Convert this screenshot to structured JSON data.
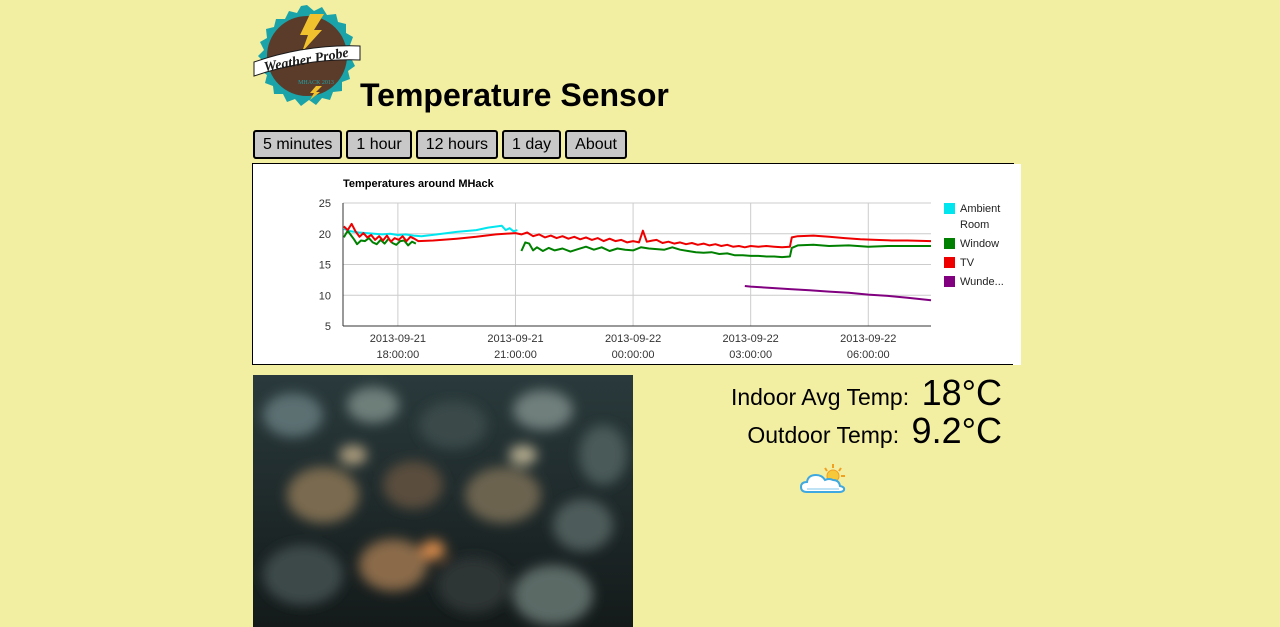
{
  "logo": {
    "line1": "Weather Probe",
    "line2": "MHACK 2013"
  },
  "page": {
    "title": "Temperature Sensor"
  },
  "nav": {
    "items": [
      {
        "label": "5 minutes"
      },
      {
        "label": "1 hour"
      },
      {
        "label": "12 hours"
      },
      {
        "label": "1 day"
      },
      {
        "label": "About"
      }
    ]
  },
  "chart_data": {
    "type": "line",
    "title": "Temperatures around MHack",
    "xlabel": "",
    "ylabel": "",
    "ylim": [
      5,
      25
    ],
    "yticks": [
      5,
      10,
      15,
      20,
      25
    ],
    "xlim": [
      16.6,
      31.6
    ],
    "x_unit": "hours",
    "xticks": [
      {
        "x": 18,
        "date": "2013-09-21",
        "time": "18:00:00"
      },
      {
        "x": 21,
        "date": "2013-09-21",
        "time": "21:00:00"
      },
      {
        "x": 24,
        "date": "2013-09-22",
        "time": "00:00:00"
      },
      {
        "x": 27,
        "date": "2013-09-22",
        "time": "03:00:00"
      },
      {
        "x": 30,
        "date": "2013-09-22",
        "time": "06:00:00"
      }
    ],
    "grid": true,
    "legend": "right",
    "series": [
      {
        "name": "Ambient Room",
        "color": "#00e5ee",
        "segments": [
          [
            [
              16.62,
              20.8
            ],
            [
              16.8,
              20.4
            ],
            [
              17.0,
              20.2
            ],
            [
              17.2,
              20.1
            ],
            [
              17.4,
              20.0
            ],
            [
              17.6,
              19.9
            ],
            [
              17.8,
              20.0
            ],
            [
              18.0,
              19.8
            ],
            [
              18.2,
              19.9
            ],
            [
              18.4,
              19.7
            ],
            [
              18.6,
              19.6
            ],
            [
              19.0,
              19.9
            ],
            [
              19.5,
              20.3
            ],
            [
              20.0,
              20.6
            ],
            [
              20.3,
              21.0
            ],
            [
              20.65,
              21.3
            ],
            [
              20.75,
              20.6
            ],
            [
              20.85,
              20.9
            ],
            [
              20.95,
              20.4
            ],
            [
              21.05,
              20.6
            ]
          ]
        ]
      },
      {
        "name": "Window",
        "color": "#008000",
        "segments": [
          [
            [
              16.62,
              19.4
            ],
            [
              16.72,
              20.5
            ],
            [
              16.8,
              19.8
            ],
            [
              16.88,
              19.1
            ],
            [
              16.96,
              18.3
            ],
            [
              17.06,
              18.9
            ],
            [
              17.16,
              18.8
            ],
            [
              17.26,
              19.3
            ],
            [
              17.36,
              18.6
            ],
            [
              17.46,
              18.3
            ],
            [
              17.56,
              19.0
            ],
            [
              17.66,
              18.4
            ],
            [
              17.76,
              19.2
            ],
            [
              17.86,
              18.5
            ],
            [
              17.96,
              18.2
            ],
            [
              18.06,
              18.8
            ],
            [
              18.16,
              18.9
            ],
            [
              18.26,
              18.1
            ],
            [
              18.36,
              18.7
            ],
            [
              18.46,
              18.4
            ]
          ],
          [
            [
              21.15,
              17.2
            ],
            [
              21.25,
              18.6
            ],
            [
              21.35,
              18.4
            ],
            [
              21.45,
              17.3
            ],
            [
              21.55,
              17.8
            ],
            [
              21.7,
              17.2
            ],
            [
              21.85,
              17.7
            ],
            [
              22.0,
              17.3
            ],
            [
              22.2,
              17.6
            ],
            [
              22.4,
              17.1
            ],
            [
              22.6,
              17.5
            ],
            [
              22.8,
              17.9
            ],
            [
              23.0,
              17.4
            ],
            [
              23.2,
              17.8
            ],
            [
              23.4,
              17.2
            ],
            [
              23.6,
              17.6
            ],
            [
              23.8,
              17.4
            ],
            [
              24.0,
              17.3
            ],
            [
              24.2,
              17.8
            ],
            [
              24.4,
              17.6
            ],
            [
              24.6,
              17.5
            ],
            [
              24.8,
              17.4
            ],
            [
              25.0,
              17.8
            ],
            [
              25.2,
              17.4
            ],
            [
              25.4,
              17.2
            ],
            [
              25.6,
              17.0
            ],
            [
              25.8,
              16.9
            ],
            [
              26.0,
              17.0
            ],
            [
              26.2,
              16.7
            ],
            [
              26.4,
              16.8
            ],
            [
              26.6,
              16.5
            ],
            [
              26.8,
              16.5
            ],
            [
              27.0,
              16.4
            ],
            [
              27.2,
              16.4
            ],
            [
              27.4,
              16.3
            ],
            [
              27.6,
              16.3
            ],
            [
              27.8,
              16.2
            ],
            [
              28.0,
              16.3
            ],
            [
              28.05,
              17.7
            ],
            [
              28.2,
              18.1
            ],
            [
              28.6,
              18.2
            ],
            [
              29.0,
              18.0
            ],
            [
              29.5,
              18.1
            ],
            [
              30.0,
              17.9
            ],
            [
              30.5,
              18.0
            ],
            [
              31.0,
              18.0
            ],
            [
              31.6,
              18.0
            ]
          ]
        ]
      },
      {
        "name": "TV",
        "color": "#ee0000",
        "segments": [
          [
            [
              16.62,
              21.2
            ],
            [
              16.72,
              20.6
            ],
            [
              16.82,
              21.6
            ],
            [
              16.92,
              20.4
            ],
            [
              17.02,
              19.5
            ],
            [
              17.12,
              20.1
            ],
            [
              17.22,
              19.4
            ],
            [
              17.32,
              19.8
            ],
            [
              17.42,
              19.0
            ],
            [
              17.52,
              19.6
            ],
            [
              17.62,
              18.9
            ],
            [
              17.72,
              19.7
            ],
            [
              17.82,
              18.7
            ],
            [
              17.92,
              19.3
            ],
            [
              18.02,
              19.0
            ],
            [
              18.12,
              19.6
            ],
            [
              18.22,
              18.8
            ],
            [
              18.32,
              19.5
            ],
            [
              18.42,
              19.2
            ],
            [
              18.52,
              18.8
            ],
            [
              18.9,
              18.9
            ],
            [
              19.5,
              19.2
            ],
            [
              20.0,
              19.5
            ],
            [
              20.5,
              19.9
            ],
            [
              21.0,
              20.1
            ],
            [
              21.15,
              19.9
            ],
            [
              21.3,
              20.2
            ],
            [
              21.45,
              19.6
            ],
            [
              21.6,
              19.9
            ],
            [
              21.75,
              19.4
            ],
            [
              21.9,
              19.7
            ],
            [
              22.05,
              19.3
            ],
            [
              22.2,
              19.6
            ],
            [
              22.35,
              19.2
            ],
            [
              22.5,
              19.5
            ],
            [
              22.65,
              19.1
            ],
            [
              22.8,
              19.4
            ],
            [
              22.95,
              19.0
            ],
            [
              23.1,
              19.3
            ],
            [
              23.25,
              18.8
            ],
            [
              23.4,
              19.2
            ],
            [
              23.55,
              18.8
            ],
            [
              23.7,
              19.0
            ],
            [
              23.85,
              18.6
            ],
            [
              24.0,
              18.8
            ],
            [
              24.15,
              18.6
            ],
            [
              24.25,
              20.5
            ],
            [
              24.35,
              18.7
            ],
            [
              24.5,
              18.9
            ],
            [
              24.6,
              19.0
            ],
            [
              24.75,
              18.5
            ],
            [
              24.9,
              18.7
            ],
            [
              25.05,
              18.4
            ],
            [
              25.2,
              18.6
            ],
            [
              25.35,
              18.3
            ],
            [
              25.5,
              18.5
            ],
            [
              25.65,
              18.2
            ],
            [
              25.8,
              18.4
            ],
            [
              25.95,
              18.1
            ],
            [
              26.1,
              18.3
            ],
            [
              26.25,
              18.0
            ],
            [
              26.4,
              18.2
            ],
            [
              26.55,
              17.9
            ],
            [
              26.7,
              18.0
            ],
            [
              26.85,
              17.8
            ],
            [
              27.0,
              18.0
            ],
            [
              27.2,
              17.9
            ],
            [
              27.4,
              18.0
            ],
            [
              27.6,
              17.9
            ],
            [
              27.8,
              17.8
            ],
            [
              28.0,
              17.9
            ],
            [
              28.05,
              19.4
            ],
            [
              28.2,
              19.6
            ],
            [
              28.6,
              19.7
            ],
            [
              29.0,
              19.5
            ],
            [
              29.4,
              19.3
            ],
            [
              29.8,
              19.1
            ],
            [
              30.2,
              19.0
            ],
            [
              30.6,
              18.9
            ],
            [
              31.0,
              18.9
            ],
            [
              31.6,
              18.8
            ]
          ]
        ]
      },
      {
        "name": "Wunderground",
        "color": "#800080",
        "segments": [
          [
            [
              26.85,
              11.5
            ],
            [
              27.0,
              11.4
            ],
            [
              27.5,
              11.2
            ],
            [
              28.0,
              11.0
            ],
            [
              28.5,
              10.8
            ],
            [
              29.0,
              10.6
            ],
            [
              29.5,
              10.4
            ],
            [
              30.0,
              10.1
            ],
            [
              30.5,
              9.9
            ],
            [
              31.0,
              9.6
            ],
            [
              31.6,
              9.2
            ]
          ]
        ]
      }
    ]
  },
  "legend_display": [
    "Ambient",
    "Room",
    "Window",
    "TV",
    "Wunde..."
  ],
  "readings": {
    "indoor_label": "Indoor Avg Temp:",
    "indoor_value": "18°C",
    "outdoor_label": "Outdoor Temp:",
    "outdoor_value": "9.2°C"
  },
  "weather": {
    "condition_icon": "partly-cloudy-icon"
  },
  "camera": {
    "icon": "webcam-feed-image"
  }
}
